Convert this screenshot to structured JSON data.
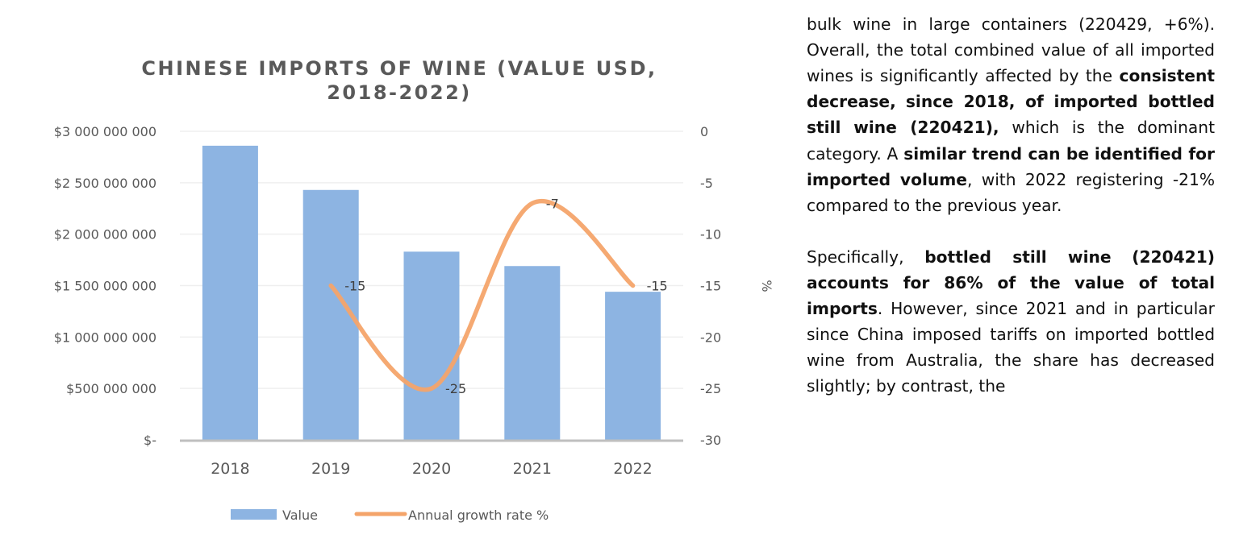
{
  "chart_data": {
    "type": "bar+line",
    "title": "CHINESE IMPORTS OF WINE (VALUE USD, 2018-2022)",
    "title_lines": [
      "CHINESE IMPORTS OF WINE (VALUE USD,",
      "2018-2022)"
    ],
    "categories": [
      "2018",
      "2019",
      "2020",
      "2021",
      "2022"
    ],
    "series": [
      {
        "name": "Value",
        "type": "bar",
        "axis": "left",
        "color": "#8DB4E2",
        "values": [
          2860000000,
          2430000000,
          1830000000,
          1690000000,
          1440000000
        ]
      },
      {
        "name": "Annual growth rate %",
        "type": "line",
        "axis": "right",
        "color": "#F4A46A",
        "values": [
          null,
          -15,
          -25,
          -7,
          -15
        ],
        "data_labels": [
          null,
          "-15",
          "-25",
          "-7",
          "-15"
        ]
      }
    ],
    "y_left": {
      "range": [
        0,
        3000000000
      ],
      "ticks": [
        0,
        500000000,
        1000000000,
        1500000000,
        2000000000,
        2500000000,
        3000000000
      ],
      "tick_labels": [
        "$-",
        "$500 000 000",
        "$1 000 000 000",
        "$1 500 000 000",
        "$2 000 000 000",
        "$2 500 000 000",
        "$3 000 000 000"
      ]
    },
    "y_right": {
      "range": [
        -30,
        0
      ],
      "ticks": [
        -30,
        -25,
        -20,
        -15,
        -10,
        -5,
        0
      ],
      "tick_labels": [
        "-30",
        "-25",
        "-20",
        "-15",
        "-10",
        "-5",
        "0"
      ],
      "label": "%"
    },
    "grid": true,
    "legend": {
      "position": "bottom",
      "entries": [
        "Value",
        "Annual growth rate %"
      ]
    }
  },
  "text": {
    "p1": {
      "l0": "bulk wine in large containers (220429,",
      "l1": "+6%). Overall, the total combined value",
      "l2": "of all imported wines is significantly",
      "l3a": "affected by the ",
      "l3b": "consistent decrease,",
      "l4": "since 2018, of imported bottled still",
      "l5a": "wine (220421),",
      "l5b": " which is the dominant",
      "l6a": "category. A ",
      "l6b": "similar trend can be",
      "l7a": "identified for imported volume",
      "l7b": ", with",
      "l8": "2022 registering -21% compared to the",
      "l9": "previous year."
    },
    "p2": {
      "l0a": "Specifically, ",
      "l0b": "bottled still wine",
      "l1": "(220421) accounts for 86% of the",
      "l2a": "value of total imports",
      "l2b": ". However,",
      "l3": "since 2021 and in particular since",
      "l4": "China imposed tariffs on imported",
      "l5": "bottled wine from Australia, the share",
      "l6": "has decreased slightly; by contrast, the"
    }
  }
}
